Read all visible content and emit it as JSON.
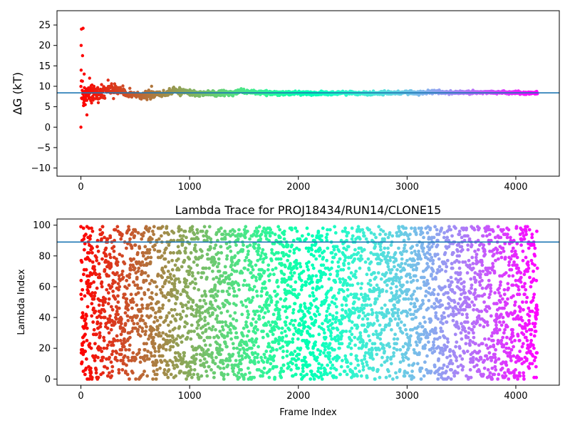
{
  "chart_data": [
    {
      "type": "scatter",
      "title": "",
      "xlabel": "",
      "ylabel": "ΔG (kT)",
      "xlim": [
        -220,
        4400
      ],
      "ylim": [
        -12,
        28.5
      ],
      "xticks": [
        0,
        1000,
        2000,
        3000,
        4000
      ],
      "yticks": [
        -10,
        -5,
        0,
        5,
        10,
        15,
        20,
        25
      ],
      "hline": 8.4,
      "hline_color": "#1f77b4",
      "colormap": "rainbow",
      "n_frames": 4200,
      "series": [
        {
          "description": "running ΔG estimate per frame, converging to ~8.4",
          "x_range": [
            0,
            4200
          ],
          "converged_value": 8.4,
          "early_points": [
            {
              "x": 0,
              "y": 0
            },
            {
              "x": 2,
              "y": 20
            },
            {
              "x": 5,
              "y": 24
            },
            {
              "x": 20,
              "y": 24.2
            },
            {
              "x": 15,
              "y": 17.5
            },
            {
              "x": 30,
              "y": 13
            },
            {
              "x": 40,
              "y": 5.5
            },
            {
              "x": 55,
              "y": 3
            },
            {
              "x": 80,
              "y": 12
            },
            {
              "x": 120,
              "y": 10
            },
            {
              "x": 160,
              "y": 6
            },
            {
              "x": 250,
              "y": 11.5
            },
            {
              "x": 300,
              "y": 7
            },
            {
              "x": 450,
              "y": 9.5
            },
            {
              "x": 650,
              "y": 10
            },
            {
              "x": 800,
              "y": 7.8
            },
            {
              "x": 1100,
              "y": 8.7
            },
            {
              "x": 2000,
              "y": 8.5
            }
          ]
        }
      ]
    },
    {
      "type": "scatter",
      "title": "Lambda Trace for PROJ18434/RUN14/CLONE15",
      "xlabel": "Frame Index",
      "ylabel": "Lambda Index",
      "xlim": [
        -220,
        4400
      ],
      "ylim": [
        -4,
        104
      ],
      "xticks": [
        0,
        1000,
        2000,
        3000,
        4000
      ],
      "yticks": [
        0,
        20,
        40,
        60,
        80,
        100
      ],
      "hline": 89,
      "hline_color": "#1f77b4",
      "colormap": "rainbow",
      "n_frames": 4200,
      "series": [
        {
          "description": "lambda state index visited per frame, roughly uniform over 0–99",
          "x_range": [
            0,
            4200
          ],
          "y_range": [
            0,
            99
          ]
        }
      ]
    }
  ]
}
